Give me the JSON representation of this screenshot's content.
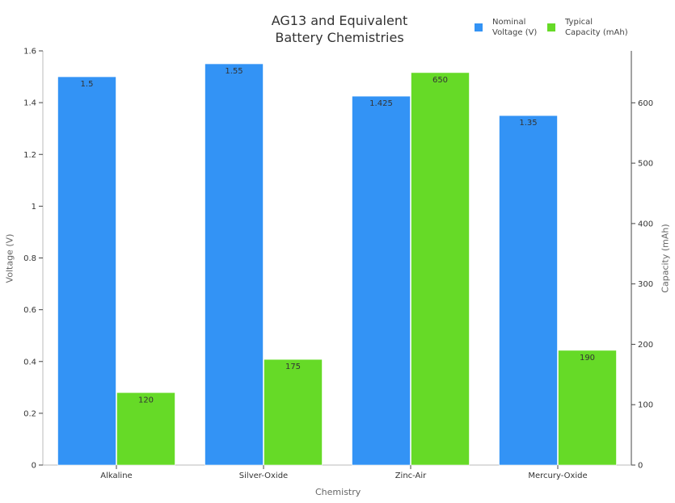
{
  "chart_data": {
    "type": "bar",
    "title": "AG13 and Equivalent Battery Chemistries",
    "title_lines": [
      "AG13 and Equivalent",
      "Battery Chemistries"
    ],
    "xlabel": "Chemistry",
    "ylabel_left": "Voltage (V)",
    "ylabel_right": "Capacity (mAh)",
    "categories": [
      "Alkaline",
      "Silver-Oxide",
      "Zinc-Air",
      "Mercury-Oxide"
    ],
    "series": [
      {
        "name": "Nominal Voltage (V)",
        "legend_lines": [
          "Nominal",
          "Voltage (V)"
        ],
        "axis": "left",
        "color": "#3393f5",
        "values": [
          1.5,
          1.55,
          1.425,
          1.35
        ],
        "labels": [
          "1.5",
          "1.55",
          "1.425",
          "1.35"
        ]
      },
      {
        "name": "Typical Capacity (mAh)",
        "legend_lines": [
          "Typical",
          "Capacity (mAh)"
        ],
        "axis": "right",
        "color": "#66da27",
        "values": [
          120,
          175,
          650,
          190
        ],
        "labels": [
          "120",
          "175",
          "650",
          "190"
        ]
      }
    ],
    "ylim_left": [
      0,
      1.6
    ],
    "yticks_left": [
      "0",
      "0.2",
      "0.4",
      "0.6",
      "0.8",
      "1",
      "1.2",
      "1.4",
      "1.6"
    ],
    "ylim_right": [
      0,
      686
    ],
    "yticks_right": [
      "0",
      "100",
      "200",
      "300",
      "400",
      "500",
      "600"
    ],
    "grid": false,
    "legend_position": "top-right"
  }
}
